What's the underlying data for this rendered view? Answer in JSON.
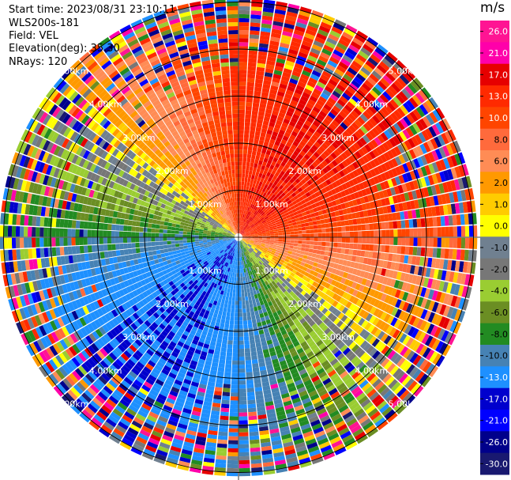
{
  "header": {
    "start_time": "Start time: 2023/08/31 23:10:11",
    "instrument": "WLS200s-181",
    "field": "Field: VEL",
    "elevation": "Elevation(deg): 35.30",
    "nrays": "NRays: 120"
  },
  "chart_data": {
    "type": "heatmap",
    "projection": "polar-ppi",
    "field": "VEL",
    "rays": 120,
    "range_rings_km": [
      1.0,
      2.0,
      3.0,
      4.0,
      5.0
    ],
    "range_ring_labels": [
      "1.00km",
      "2.00km",
      "3.00km",
      "4.00km",
      "5.00km"
    ],
    "colorbar": {
      "unit": "m/s",
      "tick_labels": [
        "26.0",
        "21.0",
        "17.0",
        "13.0",
        "10.0",
        "8.0",
        "6.0",
        "2.0",
        "1.0",
        "0.0",
        "-1.0",
        "-2.0",
        "-4.0",
        "-6.0",
        "-8.0",
        "-10.0",
        "-13.0",
        "-17.0",
        "-21.0",
        "-26.0",
        "-30.0"
      ],
      "colors": [
        "#ff1493",
        "#ff00aa",
        "#e60000",
        "#ff2a00",
        "#ff4500",
        "#ff6a3c",
        "#ff8c55",
        "#ff9900",
        "#ffcc00",
        "#ffff00",
        "#708090",
        "#777777",
        "#9acd32",
        "#6b8e23",
        "#228b22",
        "#4682b4",
        "#1e90ff",
        "#0000cd",
        "#0000ff",
        "#00008b",
        "#191970"
      ]
    }
  }
}
